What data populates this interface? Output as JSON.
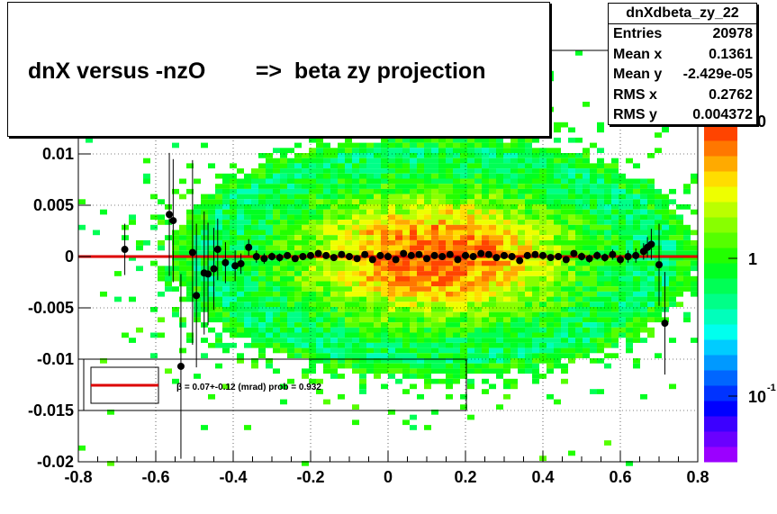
{
  "title": "dnX versus -nzO        =>  beta zy projection",
  "stats": {
    "name": "dnXdbeta_zy_22",
    "rows": [
      {
        "label": "Entries",
        "value": "20978"
      },
      {
        "label": "Mean x",
        "value": "0.1361"
      },
      {
        "label": "Mean y",
        "value": "-2.429e-05"
      },
      {
        "label": "RMS x",
        "value": "0.2762"
      },
      {
        "label": "RMS y",
        "value": "0.004372"
      }
    ]
  },
  "chart_data": {
    "type": "heatmap",
    "xlim": [
      -0.8,
      0.8
    ],
    "ylim": [
      -0.02,
      0.012
    ],
    "x_ticks": [
      -0.8,
      -0.6,
      -0.4,
      -0.2,
      0,
      0.2,
      0.4,
      0.6,
      0.8
    ],
    "x_tick_labels": [
      "-0.8",
      "-0.6",
      "-0.4",
      "-0.2",
      "0",
      "0.2",
      "0.4",
      "0.6",
      "0.8"
    ],
    "y_ticks": [
      -0.02,
      -0.015,
      -0.01,
      -0.005,
      0,
      0.005,
      0.01
    ],
    "y_tick_labels": [
      "-0.02",
      "-0.015",
      "-0.01",
      "-0.005",
      "0",
      "0.005",
      "0.01"
    ],
    "grid": true,
    "colorbar": {
      "scale": "log",
      "tick_labels": [
        "10",
        "1",
        "10"
      ],
      "tick_exponents": [
        "",
        "",
        "-1"
      ],
      "colors": [
        "#9b00ff",
        "#6a00ff",
        "#3c00ff",
        "#0000ff",
        "#0033ff",
        "#0066ff",
        "#0099ff",
        "#00ccff",
        "#00ffee",
        "#00ffbb",
        "#00ff88",
        "#00ff55",
        "#00ff22",
        "#22ff00",
        "#55ff00",
        "#88ff00",
        "#bbff00",
        "#eeff00",
        "#ffdd00",
        "#ffaa00",
        "#ff7700",
        "#ff4400"
      ]
    },
    "fit": {
      "label": "β = 0.07+-0.12 (mrad) prob = 0.932",
      "color": "#dd0000",
      "y": 0
    },
    "profile_points": [
      {
        "x": -0.68,
        "y": 0.0007,
        "err": 0.0025
      },
      {
        "x": -0.565,
        "y": 0.0041,
        "err": 0.006
      },
      {
        "x": -0.555,
        "y": 0.0035,
        "err": 0.006
      },
      {
        "x": -0.535,
        "y": -0.0107,
        "err": 0.009
      },
      {
        "x": -0.505,
        "y": 0.0004,
        "err": 0.009
      },
      {
        "x": -0.495,
        "y": -0.0038,
        "err": 0.007
      },
      {
        "x": -0.475,
        "y": -0.0016,
        "err": 0.006
      },
      {
        "x": -0.465,
        "y": -0.0017,
        "err": 0.005
      },
      {
        "x": -0.45,
        "y": -0.0012,
        "err": 0.004
      },
      {
        "x": -0.44,
        "y": 0.0007,
        "err": 0.003
      },
      {
        "x": -0.42,
        "y": -0.0006,
        "err": 0.002
      },
      {
        "x": -0.395,
        "y": -0.0009,
        "err": 0.0015
      },
      {
        "x": -0.38,
        "y": -0.0007,
        "err": 0.001
      },
      {
        "x": -0.36,
        "y": 0.0009,
        "err": 0.0008
      },
      {
        "x": -0.34,
        "y": 0.0,
        "err": 0.0006
      },
      {
        "x": -0.32,
        "y": -0.0002,
        "err": 0.0005
      },
      {
        "x": -0.3,
        "y": 0.0,
        "err": 0.0004
      },
      {
        "x": -0.28,
        "y": -0.0001,
        "err": 0.0004
      },
      {
        "x": -0.26,
        "y": 0.0001,
        "err": 0.0003
      },
      {
        "x": -0.24,
        "y": -0.0002,
        "err": 0.0003
      },
      {
        "x": -0.22,
        "y": 0.0,
        "err": 0.0003
      },
      {
        "x": -0.2,
        "y": 0.0001,
        "err": 0.0003
      },
      {
        "x": -0.18,
        "y": 0.0003,
        "err": 0.0003
      },
      {
        "x": -0.16,
        "y": 0.0001,
        "err": 0.0003
      },
      {
        "x": -0.14,
        "y": -0.0001,
        "err": 0.0003
      },
      {
        "x": -0.12,
        "y": 0.0002,
        "err": 0.0002
      },
      {
        "x": -0.1,
        "y": 0.0,
        "err": 0.0002
      },
      {
        "x": -0.08,
        "y": -0.0002,
        "err": 0.0002
      },
      {
        "x": -0.06,
        "y": 0.0002,
        "err": 0.0002
      },
      {
        "x": -0.04,
        "y": -0.0003,
        "err": 0.0002
      },
      {
        "x": -0.02,
        "y": 0.0001,
        "err": 0.0002
      },
      {
        "x": 0.0,
        "y": 0.0,
        "err": 0.0002
      },
      {
        "x": 0.02,
        "y": -0.0003,
        "err": 0.0002
      },
      {
        "x": 0.04,
        "y": 0.0003,
        "err": 0.0002
      },
      {
        "x": 0.06,
        "y": 0.0001,
        "err": 0.0002
      },
      {
        "x": 0.08,
        "y": 0.0002,
        "err": 0.0002
      },
      {
        "x": 0.1,
        "y": -0.0002,
        "err": 0.0002
      },
      {
        "x": 0.12,
        "y": 0.0001,
        "err": 0.0002
      },
      {
        "x": 0.14,
        "y": 0.0,
        "err": 0.0002
      },
      {
        "x": 0.16,
        "y": 0.0002,
        "err": 0.0002
      },
      {
        "x": 0.18,
        "y": -0.0003,
        "err": 0.0002
      },
      {
        "x": 0.2,
        "y": 0.0001,
        "err": 0.0002
      },
      {
        "x": 0.22,
        "y": 0.0,
        "err": 0.0002
      },
      {
        "x": 0.24,
        "y": 0.0003,
        "err": 0.0002
      },
      {
        "x": 0.26,
        "y": 0.0002,
        "err": 0.0002
      },
      {
        "x": 0.28,
        "y": -0.0001,
        "err": 0.0002
      },
      {
        "x": 0.3,
        "y": 0.0001,
        "err": 0.0002
      },
      {
        "x": 0.32,
        "y": 0.0,
        "err": 0.0002
      },
      {
        "x": 0.34,
        "y": -0.0004,
        "err": 0.0003
      },
      {
        "x": 0.36,
        "y": 0.0001,
        "err": 0.0003
      },
      {
        "x": 0.38,
        "y": 0.0002,
        "err": 0.0003
      },
      {
        "x": 0.4,
        "y": 0.0001,
        "err": 0.0003
      },
      {
        "x": 0.42,
        "y": -0.0001,
        "err": 0.0003
      },
      {
        "x": 0.44,
        "y": 0.0,
        "err": 0.0003
      },
      {
        "x": 0.46,
        "y": -0.0003,
        "err": 0.0003
      },
      {
        "x": 0.48,
        "y": 0.0003,
        "err": 0.0003
      },
      {
        "x": 0.5,
        "y": 0.0,
        "err": 0.0004
      },
      {
        "x": 0.52,
        "y": -0.0002,
        "err": 0.0004
      },
      {
        "x": 0.54,
        "y": 0.0001,
        "err": 0.0004
      },
      {
        "x": 0.56,
        "y": -0.0001,
        "err": 0.0004
      },
      {
        "x": 0.58,
        "y": 0.0002,
        "err": 0.0005
      },
      {
        "x": 0.6,
        "y": -0.0003,
        "err": 0.0005
      },
      {
        "x": 0.62,
        "y": 0.0,
        "err": 0.0006
      },
      {
        "x": 0.64,
        "y": 0.0001,
        "err": 0.0007
      },
      {
        "x": 0.66,
        "y": 0.0005,
        "err": 0.0008
      },
      {
        "x": 0.67,
        "y": 0.0009,
        "err": 0.001
      },
      {
        "x": 0.68,
        "y": 0.0012,
        "err": 0.0015
      },
      {
        "x": 0.7,
        "y": -0.0008,
        "err": 0.004
      },
      {
        "x": 0.715,
        "y": -0.0065,
        "err": 0.005
      }
    ]
  }
}
